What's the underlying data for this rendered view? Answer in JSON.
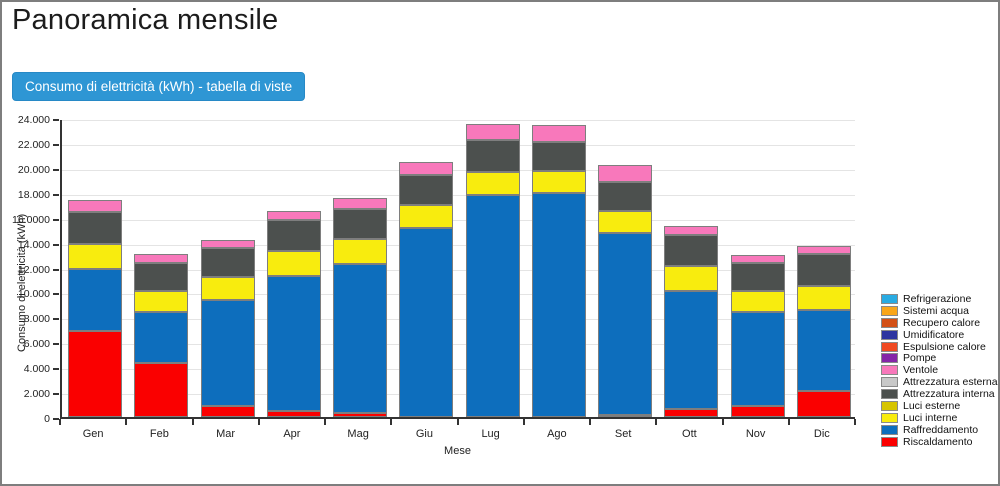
{
  "page": {
    "title": "Panoramica mensile"
  },
  "toolbar": {
    "view_button_label": "Consumo di elettricità (kWh) - tabella di viste",
    "view_button_color": "#2e96d4"
  },
  "chart_data": {
    "type": "bar",
    "stacked": true,
    "title": "",
    "xlabel": "Mese",
    "ylabel": "Consumo di elettricità (kWh)",
    "ylim": [
      0,
      24000
    ],
    "grid": true,
    "legend_position": "right",
    "y_tick_labels": [
      "24.000",
      "22.000",
      "20.000",
      "18.000",
      "16.0000",
      "14.000",
      "12.000",
      "10.000",
      "8.000",
      "6.000",
      "4.000",
      "2.000",
      "0"
    ],
    "categories": [
      "Gen",
      "Feb",
      "Mar",
      "Apr",
      "Mag",
      "Giu",
      "Lug",
      "Ago",
      "Set",
      "Ott",
      "Nov",
      "Dic"
    ],
    "series": [
      {
        "name": "Riscaldamento",
        "color": "#fa0000",
        "values": [
          6900,
          4300,
          850,
          500,
          300,
          0,
          0,
          0,
          150,
          650,
          900,
          2100
        ]
      },
      {
        "name": "Raffreddamento",
        "color": "#0d6ebd",
        "values": [
          5000,
          4100,
          8550,
          10850,
          11950,
          15200,
          17800,
          18000,
          14650,
          9450,
          7500,
          6500
        ]
      },
      {
        "name": "Luci interne",
        "color": "#f8ec0e",
        "values": [
          2000,
          1700,
          1800,
          1950,
          2050,
          1800,
          1900,
          1750,
          1750,
          2000,
          1750,
          1900
        ]
      },
      {
        "name": "Luci esterne",
        "color": "#d6c400",
        "values": [
          0,
          0,
          0,
          0,
          0,
          0,
          0,
          0,
          0,
          0,
          0,
          0
        ]
      },
      {
        "name": "Attrezzatura interna",
        "color": "#4c504e",
        "values": [
          2550,
          2250,
          2350,
          2500,
          2400,
          2400,
          2550,
          2350,
          2350,
          2500,
          2250,
          2550
        ]
      },
      {
        "name": "Attrezzatura esterna",
        "color": "#c8c8c8",
        "values": [
          0,
          0,
          0,
          0,
          0,
          0,
          0,
          0,
          0,
          0,
          0,
          0
        ]
      },
      {
        "name": "Ventole",
        "color": "#f878bb",
        "values": [
          950,
          750,
          650,
          750,
          870,
          1070,
          1250,
          1350,
          1300,
          750,
          620,
          650
        ]
      },
      {
        "name": "Pompe",
        "color": "#8526a8",
        "values": [
          0,
          0,
          0,
          0,
          0,
          0,
          0,
          0,
          0,
          0,
          0,
          0
        ]
      },
      {
        "name": "Espulsione calore",
        "color": "#f04a23",
        "values": [
          0,
          0,
          0,
          0,
          0,
          0,
          0,
          0,
          0,
          0,
          0,
          0
        ]
      },
      {
        "name": "Umidificatore",
        "color": "#2e35a0",
        "values": [
          0,
          0,
          0,
          0,
          0,
          0,
          0,
          0,
          0,
          0,
          0,
          0
        ]
      },
      {
        "name": "Recupero calore",
        "color": "#d35016",
        "values": [
          0,
          0,
          0,
          0,
          0,
          0,
          0,
          0,
          0,
          0,
          0,
          0
        ]
      },
      {
        "name": "Sistemi acqua",
        "color": "#f9a61a",
        "values": [
          0,
          0,
          0,
          0,
          0,
          0,
          0,
          0,
          0,
          0,
          0,
          0
        ]
      },
      {
        "name": "Refrigerazione",
        "color": "#29abe2",
        "values": [
          0,
          0,
          0,
          0,
          0,
          0,
          0,
          0,
          0,
          0,
          0,
          0
        ]
      }
    ],
    "legend": [
      {
        "label": "Refrigerazione",
        "color": "#29abe2"
      },
      {
        "label": "Sistemi acqua",
        "color": "#f9a61a"
      },
      {
        "label": "Recupero calore",
        "color": "#d35016"
      },
      {
        "label": "Umidificatore",
        "color": "#2e35a0"
      },
      {
        "label": "Espulsione calore",
        "color": "#f04a23"
      },
      {
        "label": "Pompe",
        "color": "#8526a8"
      },
      {
        "label": "Ventole",
        "color": "#f878bb"
      },
      {
        "label": "Attrezzatura esterna",
        "color": "#c8c8c8"
      },
      {
        "label": "Attrezzatura interna",
        "color": "#4c504e"
      },
      {
        "label": "Luci esterne",
        "color": "#d6c400"
      },
      {
        "label": "Luci interne",
        "color": "#f8ec0e"
      },
      {
        "label": "Raffreddamento",
        "color": "#0d6ebd"
      },
      {
        "label": "Riscaldamento",
        "color": "#fa0000"
      }
    ]
  }
}
